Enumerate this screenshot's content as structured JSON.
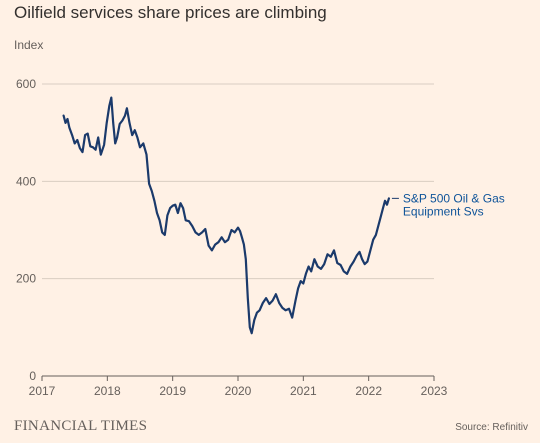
{
  "title": "Oilfield services share prices are climbing",
  "ylabel": "Index",
  "brand": "FINANCIAL TIMES",
  "source": "Source: Refinitiv",
  "colors": {
    "background": "#fff1e5",
    "line": "#1b3a6b",
    "grid": "#d9cdc2",
    "label": "#0f5499"
  },
  "chart_data": {
    "type": "line",
    "title": "Oilfield services share prices are climbing",
    "xlabel": "",
    "ylabel": "Index",
    "xlim": [
      2017,
      2023
    ],
    "ylim": [
      0,
      600
    ],
    "x_ticks": [
      "2017",
      "2018",
      "2019",
      "2020",
      "2021",
      "2022",
      "2023"
    ],
    "y_ticks": [
      0,
      200,
      400,
      600
    ],
    "grid": true,
    "series": [
      {
        "name": "S&P 500 Oil & Gas Equipment Svs",
        "label_lines": [
          "S&P 500 Oil & Gas",
          "Equipment Svs"
        ],
        "points": [
          [
            2017.33,
            535
          ],
          [
            2017.36,
            520
          ],
          [
            2017.39,
            528
          ],
          [
            2017.42,
            510
          ],
          [
            2017.46,
            495
          ],
          [
            2017.5,
            478
          ],
          [
            2017.54,
            485
          ],
          [
            2017.58,
            468
          ],
          [
            2017.62,
            460
          ],
          [
            2017.66,
            495
          ],
          [
            2017.7,
            498
          ],
          [
            2017.74,
            472
          ],
          [
            2017.78,
            470
          ],
          [
            2017.82,
            465
          ],
          [
            2017.86,
            490
          ],
          [
            2017.9,
            455
          ],
          [
            2017.95,
            475
          ],
          [
            2017.99,
            520
          ],
          [
            2018.03,
            555
          ],
          [
            2018.06,
            572
          ],
          [
            2018.09,
            520
          ],
          [
            2018.12,
            478
          ],
          [
            2018.15,
            490
          ],
          [
            2018.19,
            518
          ],
          [
            2018.23,
            525
          ],
          [
            2018.27,
            535
          ],
          [
            2018.3,
            550
          ],
          [
            2018.34,
            520
          ],
          [
            2018.38,
            495
          ],
          [
            2018.42,
            505
          ],
          [
            2018.46,
            490
          ],
          [
            2018.5,
            470
          ],
          [
            2018.55,
            478
          ],
          [
            2018.6,
            455
          ],
          [
            2018.64,
            395
          ],
          [
            2018.68,
            380
          ],
          [
            2018.72,
            360
          ],
          [
            2018.76,
            335
          ],
          [
            2018.8,
            320
          ],
          [
            2018.84,
            295
          ],
          [
            2018.88,
            290
          ],
          [
            2018.92,
            330
          ],
          [
            2018.96,
            345
          ],
          [
            2019.0,
            350
          ],
          [
            2019.04,
            352
          ],
          [
            2019.08,
            335
          ],
          [
            2019.12,
            355
          ],
          [
            2019.16,
            345
          ],
          [
            2019.2,
            320
          ],
          [
            2019.25,
            318
          ],
          [
            2019.3,
            308
          ],
          [
            2019.35,
            295
          ],
          [
            2019.4,
            290
          ],
          [
            2019.45,
            295
          ],
          [
            2019.5,
            302
          ],
          [
            2019.55,
            268
          ],
          [
            2019.6,
            258
          ],
          [
            2019.65,
            270
          ],
          [
            2019.7,
            275
          ],
          [
            2019.75,
            285
          ],
          [
            2019.8,
            275
          ],
          [
            2019.85,
            280
          ],
          [
            2019.9,
            300
          ],
          [
            2019.95,
            295
          ],
          [
            2020.0,
            305
          ],
          [
            2020.03,
            298
          ],
          [
            2020.06,
            285
          ],
          [
            2020.09,
            270
          ],
          [
            2020.12,
            240
          ],
          [
            2020.15,
            160
          ],
          [
            2020.18,
            100
          ],
          [
            2020.21,
            88
          ],
          [
            2020.25,
            115
          ],
          [
            2020.29,
            130
          ],
          [
            2020.33,
            135
          ],
          [
            2020.38,
            150
          ],
          [
            2020.43,
            160
          ],
          [
            2020.48,
            148
          ],
          [
            2020.53,
            155
          ],
          [
            2020.58,
            168
          ],
          [
            2020.63,
            150
          ],
          [
            2020.68,
            140
          ],
          [
            2020.73,
            135
          ],
          [
            2020.78,
            138
          ],
          [
            2020.83,
            120
          ],
          [
            2020.88,
            155
          ],
          [
            2020.92,
            180
          ],
          [
            2020.96,
            195
          ],
          [
            2021.0,
            190
          ],
          [
            2021.04,
            210
          ],
          [
            2021.08,
            225
          ],
          [
            2021.12,
            215
          ],
          [
            2021.17,
            240
          ],
          [
            2021.22,
            225
          ],
          [
            2021.27,
            220
          ],
          [
            2021.32,
            230
          ],
          [
            2021.37,
            250
          ],
          [
            2021.42,
            245
          ],
          [
            2021.47,
            258
          ],
          [
            2021.52,
            232
          ],
          [
            2021.57,
            228
          ],
          [
            2021.62,
            215
          ],
          [
            2021.67,
            210
          ],
          [
            2021.72,
            225
          ],
          [
            2021.77,
            235
          ],
          [
            2021.82,
            248
          ],
          [
            2021.86,
            255
          ],
          [
            2021.9,
            240
          ],
          [
            2021.94,
            230
          ],
          [
            2021.98,
            235
          ],
          [
            2022.03,
            260
          ],
          [
            2022.07,
            280
          ],
          [
            2022.11,
            290
          ],
          [
            2022.15,
            310
          ],
          [
            2022.19,
            330
          ],
          [
            2022.22,
            345
          ],
          [
            2022.25,
            360
          ],
          [
            2022.28,
            352
          ],
          [
            2022.31,
            365
          ]
        ]
      }
    ]
  }
}
